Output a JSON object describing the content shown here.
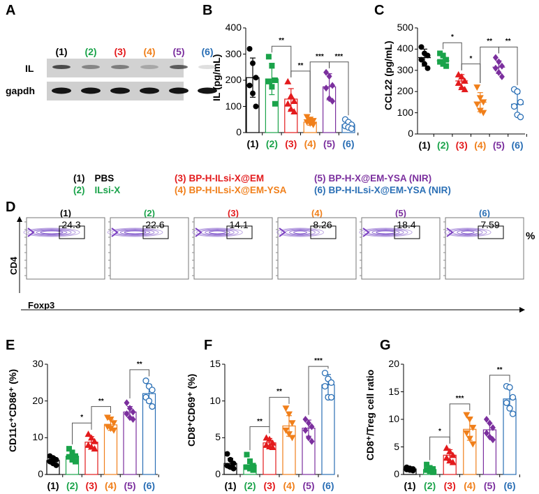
{
  "groups": [
    {
      "id": "(1)",
      "name": "PBS",
      "color": "#000000",
      "marker": "filled-circle"
    },
    {
      "id": "(2)",
      "name": "ILsi-X",
      "color": "#1aa34a",
      "marker": "filled-square"
    },
    {
      "id": "(3)",
      "name": "BP-H-ILsi-X@EM",
      "color": "#e31a1c",
      "marker": "filled-triangle-up"
    },
    {
      "id": "(4)",
      "name": "BP-H-ILsi-X@EM-YSA",
      "color": "#f07f1a",
      "marker": "filled-triangle-down"
    },
    {
      "id": "(5)",
      "name": "BP-H-X@EM-YSA (NIR)",
      "color": "#7b2f9e",
      "marker": "filled-diamond"
    },
    {
      "id": "(6)",
      "name": "BP-H-ILsi-X@EM-YSA (NIR)",
      "color": "#2a6fb5",
      "marker": "open-circle"
    }
  ],
  "panel_labels": {
    "a": "A",
    "b": "B",
    "c": "C",
    "d": "D",
    "e": "E",
    "f": "F",
    "g": "G"
  },
  "blot": {
    "rows": [
      "IL",
      "gapdh"
    ],
    "il_band_intensity": [
      0.8,
      0.45,
      0.5,
      0.25,
      0.7,
      0.15
    ],
    "gapdh_band_intensity": [
      0.95,
      0.95,
      0.95,
      0.95,
      0.95,
      0.95
    ]
  },
  "flow": {
    "xlabel": "Foxp3",
    "ylabel": "CD4",
    "unit": "%",
    "values": [
      "24.3",
      "22.6",
      "14.1",
      "8.26",
      "18.4",
      "7.59"
    ]
  },
  "chart_data": [
    {
      "panel": "B",
      "type": "bar",
      "style": "bar-with-points",
      "categories": [
        "(1)",
        "(2)",
        "(3)",
        "(4)",
        "(5)",
        "(6)"
      ],
      "ylabel": "IL (pg/mL)",
      "ylim": [
        0,
        400
      ],
      "yticks": [
        0,
        100,
        200,
        300,
        400
      ],
      "means": [
        210,
        205,
        128,
        40,
        175,
        30
      ],
      "sd": [
        75,
        60,
        40,
        12,
        50,
        12
      ],
      "points": [
        [
          320,
          265,
          210,
          180,
          150,
          100
        ],
        [
          290,
          255,
          200,
          195,
          175,
          110
        ],
        [
          195,
          140,
          120,
          110,
          90,
          80
        ],
        [
          60,
          50,
          45,
          40,
          35,
          30
        ],
        [
          230,
          215,
          180,
          170,
          130,
          120
        ],
        [
          50,
          40,
          30,
          25,
          20,
          15
        ]
      ],
      "significance": [
        {
          "from": "(2)",
          "to": "(3)",
          "label": "**"
        },
        {
          "from": "(3)",
          "to": "(4)",
          "label": "**"
        },
        {
          "from": "(4)",
          "to": "(5)",
          "label": "***"
        },
        {
          "from": "(5)",
          "to": "(6)",
          "label": "***"
        }
      ]
    },
    {
      "panel": "C",
      "type": "scatter",
      "style": "points-with-mean-sd",
      "categories": [
        "(1)",
        "(2)",
        "(3)",
        "(4)",
        "(5)",
        "(6)"
      ],
      "ylabel": "CCL22 (pg/mL)",
      "ylim": [
        0,
        500
      ],
      "yticks": [
        0,
        100,
        200,
        300,
        400,
        500
      ],
      "means": [
        360,
        345,
        250,
        150,
        315,
        140
      ],
      "sd": [
        40,
        20,
        30,
        45,
        30,
        50
      ],
      "points": [
        [
          410,
          380,
          370,
          350,
          330,
          310
        ],
        [
          380,
          370,
          350,
          340,
          330,
          320
        ],
        [
          280,
          270,
          250,
          240,
          220,
          210
        ],
        [
          220,
          170,
          150,
          140,
          110,
          100
        ],
        [
          360,
          340,
          320,
          310,
          290,
          270
        ],
        [
          210,
          200,
          150,
          130,
          90,
          80
        ]
      ],
      "significance": [
        {
          "from": "(2)",
          "to": "(3)",
          "label": "*"
        },
        {
          "from": "(3)",
          "to": "(4)",
          "label": "*"
        },
        {
          "from": "(4)",
          "to": "(5)",
          "label": "**"
        },
        {
          "from": "(5)",
          "to": "(6)",
          "label": "**"
        }
      ]
    },
    {
      "panel": "E",
      "type": "bar",
      "style": "bar-with-points",
      "categories": [
        "(1)",
        "(2)",
        "(3)",
        "(4)",
        "(5)",
        "(6)"
      ],
      "ylabel": "CD11c⁺CD86⁺ (%)",
      "ylim": [
        0,
        30
      ],
      "yticks": [
        0,
        10,
        20,
        30
      ],
      "means": [
        3.8,
        5,
        8.8,
        13.5,
        17,
        22
      ],
      "sd": [
        1,
        1.2,
        1.5,
        1.5,
        1.5,
        2.5
      ],
      "points": [
        [
          5,
          4.5,
          4,
          3.5,
          3,
          2.5
        ],
        [
          7,
          6,
          5,
          4.8,
          4,
          3.5
        ],
        [
          11,
          10,
          9,
          8,
          7.5,
          7
        ],
        [
          15.5,
          15,
          14,
          13,
          12.5,
          12
        ],
        [
          19.5,
          18,
          17,
          16.5,
          15.5,
          15
        ],
        [
          25.5,
          24,
          23,
          21,
          20,
          18.5
        ]
      ],
      "significance": [
        {
          "from": "(2)",
          "to": "(3)",
          "label": "*"
        },
        {
          "from": "(3)",
          "to": "(4)",
          "label": "**"
        },
        {
          "from": "(5)",
          "to": "(6)",
          "label": "**"
        }
      ]
    },
    {
      "panel": "F",
      "type": "bar",
      "style": "bar-with-points",
      "categories": [
        "(1)",
        "(2)",
        "(3)",
        "(4)",
        "(5)",
        "(6)"
      ],
      "ylabel": "CD8⁺CD69⁺ (%)",
      "ylim": [
        0,
        15
      ],
      "yticks": [
        0,
        5,
        10,
        15
      ],
      "means": [
        1.5,
        1.3,
        4.3,
        6.6,
        6.3,
        12.2
      ],
      "sd": [
        0.7,
        0.8,
        0.6,
        1.4,
        1.1,
        1.4
      ],
      "points": [
        [
          2.8,
          2,
          1.5,
          1.2,
          1,
          0.8
        ],
        [
          2.7,
          1.8,
          1.2,
          1,
          0.8,
          0.6
        ],
        [
          5,
          4.8,
          4.3,
          4,
          3.8,
          3.7
        ],
        [
          9,
          8.2,
          7,
          6,
          5.5,
          5
        ],
        [
          7.5,
          7,
          6.5,
          6,
          5,
          4.5
        ],
        [
          13.8,
          13,
          12.5,
          12,
          10.5,
          10.5
        ]
      ],
      "significance": [
        {
          "from": "(2)",
          "to": "(3)",
          "label": "**"
        },
        {
          "from": "(3)",
          "to": "(4)",
          "label": "**"
        },
        {
          "from": "(5)",
          "to": "(6)",
          "label": "***"
        }
      ]
    },
    {
      "panel": "G",
      "type": "bar",
      "style": "bar-with-points",
      "categories": [
        "(1)",
        "(2)",
        "(3)",
        "(4)",
        "(5)",
        "(6)"
      ],
      "ylabel": "CD8⁺/Treg cell ratio",
      "ylim": [
        0,
        20
      ],
      "yticks": [
        0,
        5,
        10,
        15,
        20
      ],
      "means": [
        1,
        0.9,
        3.5,
        8.2,
        8.1,
        13.7
      ],
      "sd": [
        0.2,
        0.4,
        1,
        2,
        1.2,
        1.8
      ],
      "points": [
        [
          1.3,
          1.1,
          1,
          0.9,
          0.8,
          0.7
        ],
        [
          1.8,
          1.2,
          1,
          0.8,
          0.6,
          0.4
        ],
        [
          4.8,
          4.2,
          3.5,
          3,
          2.5,
          2.2
        ],
        [
          10.8,
          10,
          8.5,
          7.5,
          6.5,
          5.5
        ],
        [
          10,
          9.3,
          8.5,
          7.5,
          6.8,
          6.3
        ],
        [
          16,
          15.8,
          14,
          13,
          12,
          11
        ]
      ],
      "significance": [
        {
          "from": "(2)",
          "to": "(3)",
          "label": "*"
        },
        {
          "from": "(3)",
          "to": "(4)",
          "label": "***"
        },
        {
          "from": "(5)",
          "to": "(6)",
          "label": "**"
        }
      ]
    }
  ]
}
